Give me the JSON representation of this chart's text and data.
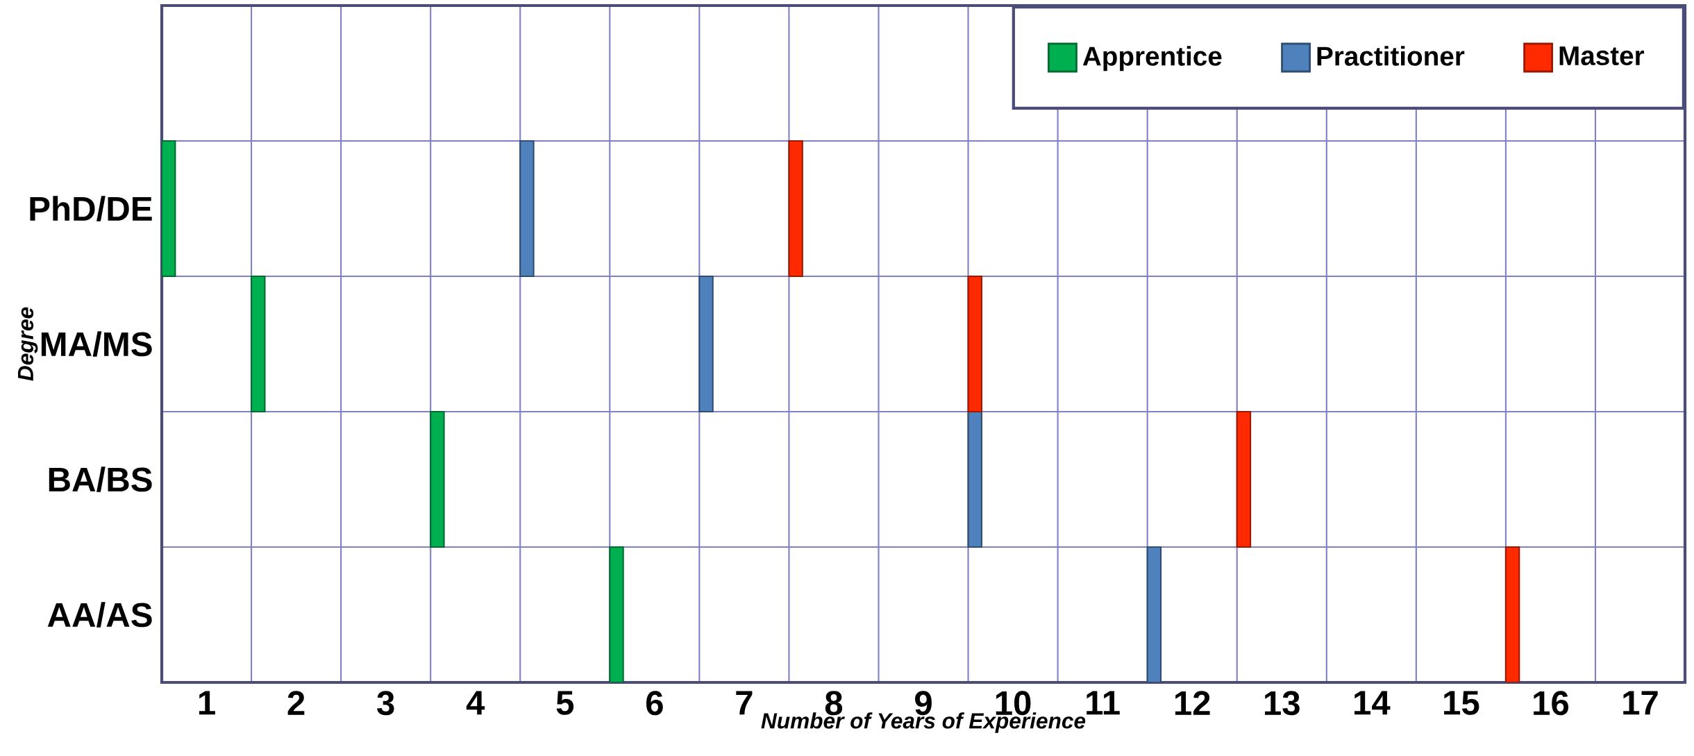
{
  "chart_data": {
    "type": "bar",
    "orientation": "horizontal",
    "xlabel": "Number of Years of Experience",
    "ylabel": "Degree",
    "categories": [
      "PhD/DE",
      "MA/MS",
      "BA/BS",
      "AA/AS"
    ],
    "series": [
      {
        "name": "Apprentice",
        "color": "#00b050",
        "base": [
          0.5,
          1.5,
          3.5,
          5.5
        ],
        "values": [
          0.15,
          0.15,
          0.15,
          0.15
        ]
      },
      {
        "name": "Practitioner",
        "color": "#4f81bd",
        "base": [
          4.5,
          6.5,
          9.5,
          11.5
        ],
        "values": [
          0.15,
          0.15,
          0.15,
          0.15
        ]
      },
      {
        "name": "Master",
        "color": "#ff2a00",
        "base": [
          7.5,
          9.5,
          12.5,
          15.5
        ],
        "values": [
          0.15,
          0.15,
          0.15,
          0.15
        ]
      }
    ],
    "xlim": [
      0.5,
      17.5
    ],
    "xticks": [
      1,
      2,
      3,
      4,
      5,
      6,
      7,
      8,
      9,
      10,
      11,
      12,
      13,
      14,
      15,
      16,
      17
    ],
    "grid": true,
    "legend": "top right"
  }
}
